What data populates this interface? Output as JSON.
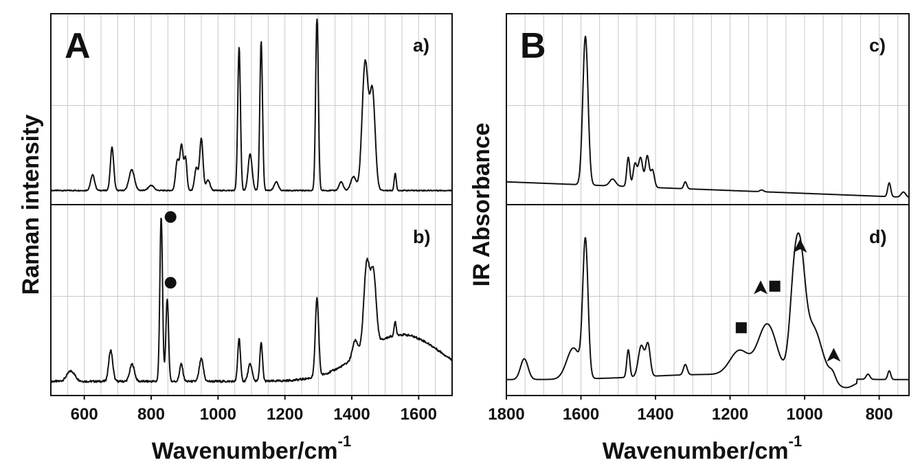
{
  "figure": {
    "panel_A_label": "A",
    "panel_B_label": "B"
  },
  "chart_data": [
    {
      "type": "line",
      "panel": "A",
      "ylabel": "Raman intensity",
      "xlabel_main": "Wavenumber/cm",
      "xlabel_sup": "-1",
      "xlim": [
        500,
        1700
      ],
      "xticks": [
        600,
        800,
        1000,
        1200,
        1400,
        1600
      ],
      "subplots": [
        {
          "label": "a)",
          "baseline": 0.05,
          "gaussian_peaks": [
            {
              "x": 625,
              "h": 0.09,
              "w": 6
            },
            {
              "x": 683,
              "h": 0.25,
              "w": 5
            },
            {
              "x": 742,
              "h": 0.12,
              "w": 8
            },
            {
              "x": 800,
              "h": 0.03,
              "w": 8
            },
            {
              "x": 878,
              "h": 0.17,
              "w": 5
            },
            {
              "x": 891,
              "h": 0.26,
              "w": 5
            },
            {
              "x": 903,
              "h": 0.18,
              "w": 4
            },
            {
              "x": 935,
              "h": 0.13,
              "w": 5
            },
            {
              "x": 950,
              "h": 0.3,
              "w": 5
            },
            {
              "x": 970,
              "h": 0.06,
              "w": 6
            },
            {
              "x": 1063,
              "h": 0.83,
              "w": 4
            },
            {
              "x": 1096,
              "h": 0.21,
              "w": 6
            },
            {
              "x": 1129,
              "h": 0.86,
              "w": 4
            },
            {
              "x": 1174,
              "h": 0.05,
              "w": 6
            },
            {
              "x": 1296,
              "h": 1.01,
              "w": 4
            },
            {
              "x": 1368,
              "h": 0.05,
              "w": 6
            },
            {
              "x": 1405,
              "h": 0.08,
              "w": 8
            },
            {
              "x": 1440,
              "h": 0.74,
              "w": 9
            },
            {
              "x": 1462,
              "h": 0.56,
              "w": 8
            },
            {
              "x": 1530,
              "h": 0.1,
              "w": 3
            }
          ]
        },
        {
          "label": "b)",
          "baseline": 0.05,
          "gaussian_peaks": [
            {
              "x": 560,
              "h": 0.06,
              "w": 12
            },
            {
              "x": 679,
              "h": 0.18,
              "w": 6
            },
            {
              "x": 743,
              "h": 0.1,
              "w": 7
            },
            {
              "x": 830,
              "h": 0.95,
              "w": 4
            },
            {
              "x": 848,
              "h": 0.48,
              "w": 4
            },
            {
              "x": 890,
              "h": 0.1,
              "w": 5
            },
            {
              "x": 950,
              "h": 0.13,
              "w": 6
            },
            {
              "x": 1063,
              "h": 0.25,
              "w": 4
            },
            {
              "x": 1096,
              "h": 0.1,
              "w": 6
            },
            {
              "x": 1129,
              "h": 0.22,
              "w": 4
            },
            {
              "x": 1296,
              "h": 0.45,
              "w": 5
            },
            {
              "x": 1410,
              "h": 0.1,
              "w": 8
            },
            {
              "x": 1445,
              "h": 0.5,
              "w": 9
            },
            {
              "x": 1465,
              "h": 0.4,
              "w": 8
            },
            {
              "x": 1530,
              "h": 0.08,
              "w": 3
            }
          ],
          "broad_background": {
            "center": 1550,
            "height": 0.27,
            "width": 170
          },
          "markers": [
            {
              "shape": "circle",
              "x": 858,
              "y": 1.0
            },
            {
              "shape": "circle",
              "x": 858,
              "y": 0.62
            }
          ]
        }
      ]
    },
    {
      "type": "line",
      "panel": "B",
      "ylabel": "IR Absorbance",
      "xlabel_main": "Wavenumber/cm",
      "xlabel_sup": "-1",
      "xlim": [
        1800,
        720
      ],
      "xaxis_reversed": true,
      "xticks": [
        1800,
        1600,
        1400,
        1200,
        1000,
        800
      ],
      "subplots": [
        {
          "label": "c)",
          "baseline_start": 0.1,
          "baseline_end": 0.01,
          "gaussian_peaks": [
            {
              "x": 1588,
              "h": 0.86,
              "w": 7
            },
            {
              "x": 1515,
              "h": 0.04,
              "w": 8
            },
            {
              "x": 1473,
              "h": 0.17,
              "w": 4
            },
            {
              "x": 1455,
              "h": 0.13,
              "w": 5
            },
            {
              "x": 1440,
              "h": 0.17,
              "w": 6
            },
            {
              "x": 1422,
              "h": 0.18,
              "w": 5
            },
            {
              "x": 1408,
              "h": 0.1,
              "w": 5
            },
            {
              "x": 1320,
              "h": 0.04,
              "w": 4
            },
            {
              "x": 1115,
              "h": 0.01,
              "w": 5
            },
            {
              "x": 773,
              "h": 0.08,
              "w": 4
            },
            {
              "x": 735,
              "h": 0.03,
              "w": 6
            }
          ]
        },
        {
          "label": "d)",
          "gaussian_peaks": [
            {
              "x": 1752,
              "h": 0.12,
              "w": 10
            },
            {
              "x": 1620,
              "h": 0.18,
              "w": 18
            },
            {
              "x": 1588,
              "h": 0.78,
              "w": 7
            },
            {
              "x": 1473,
              "h": 0.16,
              "w": 4
            },
            {
              "x": 1438,
              "h": 0.18,
              "w": 8
            },
            {
              "x": 1420,
              "h": 0.18,
              "w": 6
            },
            {
              "x": 1320,
              "h": 0.06,
              "w": 5
            },
            {
              "x": 1175,
              "h": 0.14,
              "w": 25
            },
            {
              "x": 1100,
              "h": 0.3,
              "w": 25
            },
            {
              "x": 1028,
              "h": 0.5,
              "w": 12
            },
            {
              "x": 1010,
              "h": 0.48,
              "w": 12
            },
            {
              "x": 980,
              "h": 0.3,
              "w": 25
            },
            {
              "x": 925,
              "h": 0.04,
              "w": 8
            },
            {
              "x": 830,
              "h": 0.03,
              "w": 5
            },
            {
              "x": 773,
              "h": 0.05,
              "w": 4
            }
          ],
          "markers": [
            {
              "shape": "square",
              "x": 1170,
              "y": 0.36
            },
            {
              "shape": "square",
              "x": 1080,
              "y": 0.6
            },
            {
              "shape": "arrowhead",
              "x": 1118,
              "y": 0.59
            },
            {
              "shape": "arrowhead",
              "x": 1012,
              "y": 0.83
            },
            {
              "shape": "arrowhead",
              "x": 922,
              "y": 0.2
            }
          ]
        }
      ]
    }
  ]
}
